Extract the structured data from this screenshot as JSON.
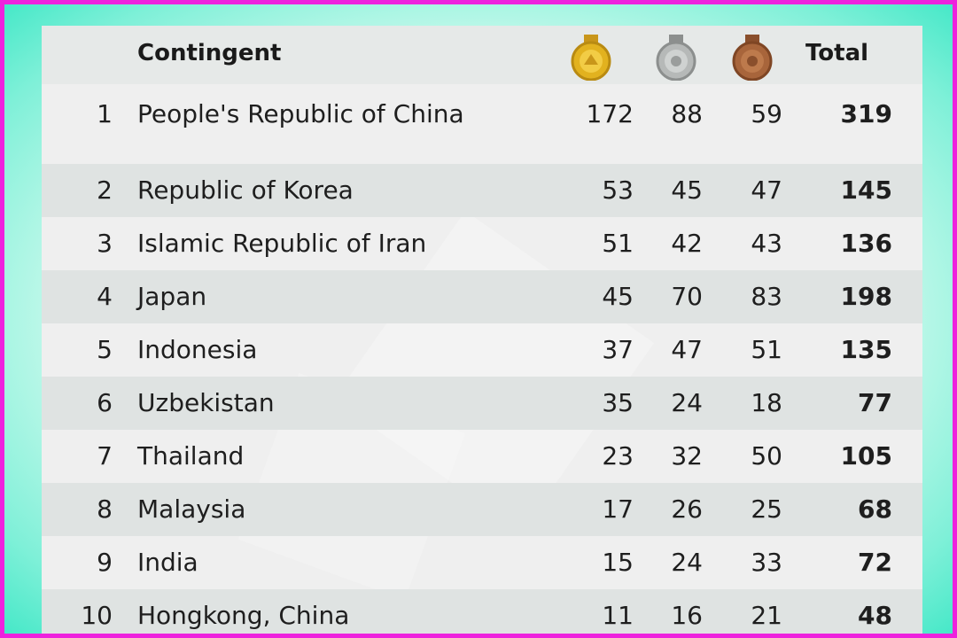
{
  "header": {
    "contingent_label": "Contingent",
    "total_label": "Total",
    "gold_icon": "gold-medal-icon",
    "silver_icon": "silver-medal-icon",
    "bronze_icon": "bronze-medal-icon"
  },
  "colors": {
    "gold": "#e2b21f",
    "silver": "#a9acab",
    "bronze": "#a8653b",
    "outer_border": "#ee22dd",
    "glow": "#46e8c8"
  },
  "rows": [
    {
      "rank": "1",
      "name": "People's Republic of China",
      "gold": "172",
      "silver": "88",
      "bronze": "59",
      "total": "319"
    },
    {
      "rank": "2",
      "name": "Republic of Korea",
      "gold": "53",
      "silver": "45",
      "bronze": "47",
      "total": "145"
    },
    {
      "rank": "3",
      "name": "Islamic Republic of Iran",
      "gold": "51",
      "silver": "42",
      "bronze": "43",
      "total": "136"
    },
    {
      "rank": "4",
      "name": "Japan",
      "gold": "45",
      "silver": "70",
      "bronze": "83",
      "total": "198"
    },
    {
      "rank": "5",
      "name": "Indonesia",
      "gold": "37",
      "silver": "47",
      "bronze": "51",
      "total": "135"
    },
    {
      "rank": "6",
      "name": "Uzbekistan",
      "gold": "35",
      "silver": "24",
      "bronze": "18",
      "total": "77"
    },
    {
      "rank": "7",
      "name": "Thailand",
      "gold": "23",
      "silver": "32",
      "bronze": "50",
      "total": "105"
    },
    {
      "rank": "8",
      "name": "Malaysia",
      "gold": "17",
      "silver": "26",
      "bronze": "25",
      "total": "68"
    },
    {
      "rank": "9",
      "name": "India",
      "gold": "15",
      "silver": "24",
      "bronze": "33",
      "total": "72"
    },
    {
      "rank": "10",
      "name": "Hongkong, China",
      "gold": "11",
      "silver": "16",
      "bronze": "21",
      "total": "48"
    }
  ]
}
